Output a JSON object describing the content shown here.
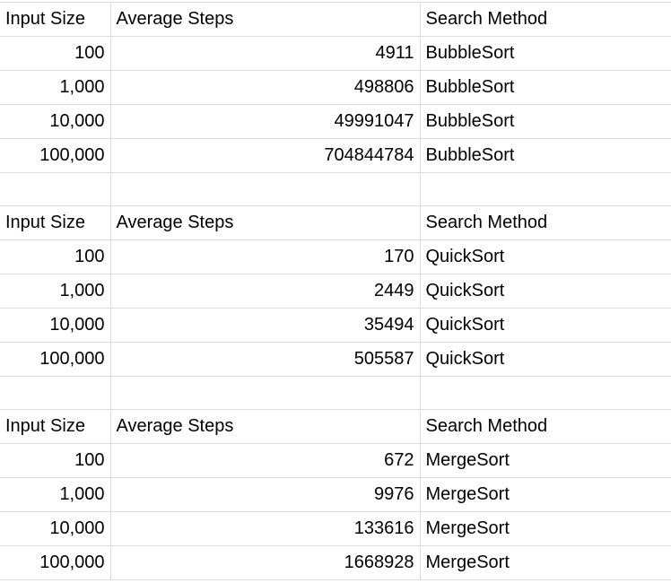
{
  "sections": [
    {
      "header": {
        "input_size": "Input Size",
        "average_steps": "Average Steps",
        "search_method": "Search Method"
      },
      "rows": [
        {
          "input_size": "100",
          "average_steps": "4911",
          "search_method": "BubbleSort"
        },
        {
          "input_size": "1,000",
          "average_steps": "498806",
          "search_method": "BubbleSort"
        },
        {
          "input_size": "10,000",
          "average_steps": "49991047",
          "search_method": "BubbleSort"
        },
        {
          "input_size": "100,000",
          "average_steps": "704844784",
          "search_method": "BubbleSort"
        }
      ]
    },
    {
      "header": {
        "input_size": "Input Size",
        "average_steps": "Average Steps",
        "search_method": "Search Method"
      },
      "rows": [
        {
          "input_size": "100",
          "average_steps": "170",
          "search_method": "QuickSort"
        },
        {
          "input_size": "1,000",
          "average_steps": "2449",
          "search_method": "QuickSort"
        },
        {
          "input_size": "10,000",
          "average_steps": "35494",
          "search_method": "QuickSort"
        },
        {
          "input_size": "100,000",
          "average_steps": "505587",
          "search_method": "QuickSort"
        }
      ]
    },
    {
      "header": {
        "input_size": "Input Size",
        "average_steps": "Average Steps",
        "search_method": "Search Method"
      },
      "rows": [
        {
          "input_size": "100",
          "average_steps": "672",
          "search_method": "MergeSort"
        },
        {
          "input_size": "1,000",
          "average_steps": "9976",
          "search_method": "MergeSort"
        },
        {
          "input_size": "10,000",
          "average_steps": "133616",
          "search_method": "MergeSort"
        },
        {
          "input_size": "100,000",
          "average_steps": "1668928",
          "search_method": "MergeSort"
        }
      ]
    }
  ]
}
